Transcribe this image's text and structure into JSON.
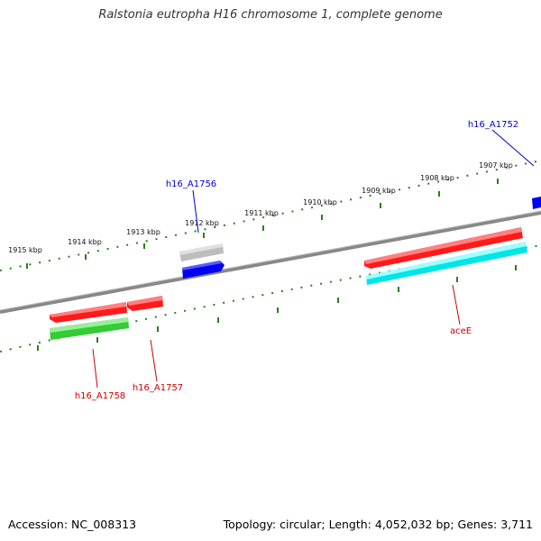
{
  "title": "Ralstonia eutropha H16 chromosome 1, complete genome",
  "footer": {
    "accession": "Accession: NC_008313",
    "summary": "Topology: circular; Length: 4,052,032 bp; Genes: 3,711"
  },
  "ruler_ticks": [
    {
      "label": "1915 kbp"
    },
    {
      "label": "1914 kbp"
    },
    {
      "label": "1913 kbp"
    },
    {
      "label": "1912 kbp"
    },
    {
      "label": "1911 kbp"
    },
    {
      "label": "1910 kbp"
    },
    {
      "label": "1909 kbp"
    },
    {
      "label": "1908 kbp"
    },
    {
      "label": "1907 kbp"
    }
  ],
  "genes": [
    {
      "name": "h16_A1752",
      "color": "#0000cc"
    },
    {
      "name": "h16_A1756",
      "color": "#0000cc"
    },
    {
      "name": "aceE",
      "color": "#cc0000"
    },
    {
      "name": "h16_A1758",
      "color": "#cc0000"
    },
    {
      "name": "h16_A1757",
      "color": "#cc0000"
    }
  ],
  "colors": {
    "backbone": "#777777",
    "ruler": "#2e7d1e",
    "red_feature": "#ff1a1a",
    "blue_feature": "#0000ee",
    "grey_feature": "#bdbdbd",
    "cyan_feature": "#00e5e5",
    "green_feature": "#33cc33"
  }
}
